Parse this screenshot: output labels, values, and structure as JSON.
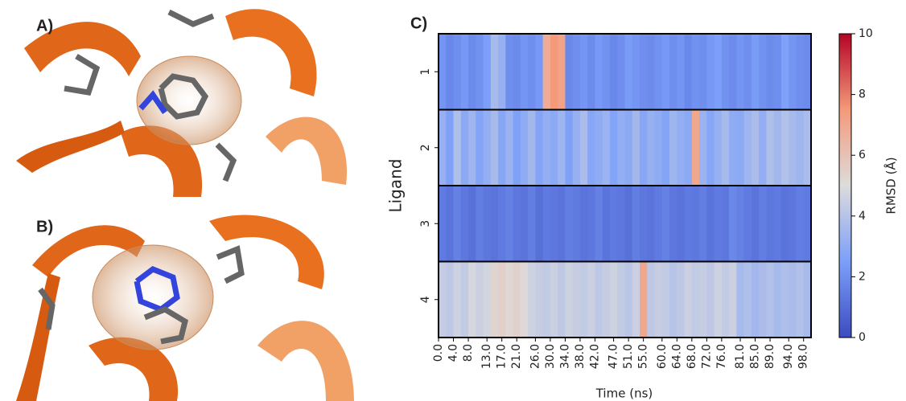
{
  "panels": {
    "a": "A)",
    "b": "B)"
  },
  "chart_data": {
    "type": "heatmap",
    "panel_label": "C)",
    "xlabel": "Time (ns)",
    "ylabel": "Ligand",
    "colorbar_label": "RMSD (Å)",
    "colormap": "coolwarm",
    "zlim": [
      0,
      10
    ],
    "zticks": [
      0,
      2,
      4,
      6,
      8,
      10
    ],
    "xlim": [
      0,
      100
    ],
    "xticks": [
      {
        "value": 0,
        "label": "0.0"
      },
      {
        "value": 4,
        "label": "4.0"
      },
      {
        "value": 8,
        "label": "8.0"
      },
      {
        "value": 13,
        "label": "13.0"
      },
      {
        "value": 17,
        "label": "17.0"
      },
      {
        "value": 21,
        "label": "21.0"
      },
      {
        "value": 26,
        "label": "26.0"
      },
      {
        "value": 30,
        "label": "30.0"
      },
      {
        "value": 34,
        "label": "34.0"
      },
      {
        "value": 38,
        "label": "38.0"
      },
      {
        "value": 42,
        "label": "42.0"
      },
      {
        "value": 47,
        "label": "47.0"
      },
      {
        "value": 51,
        "label": "51.0"
      },
      {
        "value": 55,
        "label": "55.0"
      },
      {
        "value": 60,
        "label": "60.0"
      },
      {
        "value": 64,
        "label": "64.0"
      },
      {
        "value": 68,
        "label": "68.0"
      },
      {
        "value": 72,
        "label": "72.0"
      },
      {
        "value": 76,
        "label": "76.0"
      },
      {
        "value": 81,
        "label": "81.0"
      },
      {
        "value": 85,
        "label": "85.0"
      },
      {
        "value": 89,
        "label": "89.0"
      },
      {
        "value": 94,
        "label": "94.0"
      },
      {
        "value": 98,
        "label": "98.0"
      }
    ],
    "x": [
      0,
      2,
      4,
      6,
      8,
      10,
      12,
      14,
      16,
      18,
      20,
      22,
      24,
      26,
      28,
      30,
      32,
      34,
      36,
      38,
      40,
      42,
      44,
      46,
      48,
      50,
      52,
      54,
      56,
      58,
      60,
      62,
      64,
      66,
      68,
      70,
      72,
      74,
      76,
      78,
      80,
      82,
      84,
      86,
      88,
      90,
      92,
      94,
      96,
      98
    ],
    "series": [
      {
        "name": "1",
        "values": [
          2.2,
          1.8,
          2.0,
          2.3,
          1.9,
          2.1,
          2.5,
          3.6,
          3.2,
          2.0,
          1.9,
          2.2,
          2.0,
          2.3,
          6.8,
          7.5,
          7.2,
          1.8,
          2.0,
          2.2,
          1.9,
          2.3,
          2.1,
          1.8,
          2.0,
          2.4,
          2.2,
          2.0,
          1.9,
          2.1,
          2.3,
          2.0,
          2.2,
          1.8,
          2.1,
          2.0,
          2.3,
          2.5,
          2.1,
          1.9,
          2.2,
          2.0,
          2.4,
          2.1,
          1.9,
          2.0,
          2.6,
          2.2,
          2.0,
          1.9
        ]
      },
      {
        "name": "2",
        "values": [
          3.2,
          2.6,
          3.8,
          2.9,
          3.4,
          2.7,
          3.1,
          3.6,
          2.8,
          3.3,
          2.6,
          3.0,
          3.5,
          2.7,
          3.1,
          2.9,
          3.4,
          2.6,
          3.2,
          3.7,
          2.8,
          3.0,
          3.3,
          2.7,
          3.1,
          2.9,
          3.5,
          2.8,
          3.2,
          3.0,
          2.7,
          3.4,
          3.1,
          2.9,
          7.0,
          3.3,
          2.8,
          3.2,
          3.6,
          3.0,
          2.9,
          3.4,
          3.7,
          3.1,
          3.8,
          3.5,
          3.9,
          3.6,
          3.4,
          3.7
        ]
      },
      {
        "name": "3",
        "values": [
          1.4,
          1.2,
          1.6,
          1.3,
          1.1,
          1.5,
          1.3,
          1.2,
          1.4,
          1.6,
          1.3,
          1.2,
          1.5,
          1.1,
          1.4,
          1.3,
          1.2,
          1.5,
          1.4,
          1.2,
          1.3,
          1.6,
          1.2,
          1.4,
          1.3,
          1.1,
          1.5,
          1.3,
          1.2,
          1.4,
          1.6,
          1.3,
          1.2,
          1.4,
          1.3,
          1.5,
          1.2,
          1.4,
          1.3,
          1.8,
          1.6,
          1.4,
          1.2,
          1.5,
          1.3,
          1.4,
          1.2,
          1.3,
          1.5,
          1.4
        ]
      },
      {
        "name": "4",
        "values": [
          4.4,
          4.2,
          4.6,
          4.3,
          4.8,
          4.5,
          4.7,
          5.3,
          5.5,
          5.2,
          5.4,
          5.1,
          4.6,
          4.4,
          4.3,
          4.5,
          4.2,
          4.6,
          4.4,
          4.3,
          4.5,
          4.2,
          4.4,
          4.6,
          4.3,
          4.1,
          4.5,
          7.0,
          4.2,
          4.4,
          4.3,
          4.0,
          4.2,
          4.5,
          4.3,
          4.4,
          4.2,
          4.6,
          4.3,
          4.5,
          3.6,
          3.8,
          3.5,
          3.7,
          3.9,
          3.6,
          3.8,
          3.7,
          3.9,
          3.6
        ]
      }
    ]
  }
}
